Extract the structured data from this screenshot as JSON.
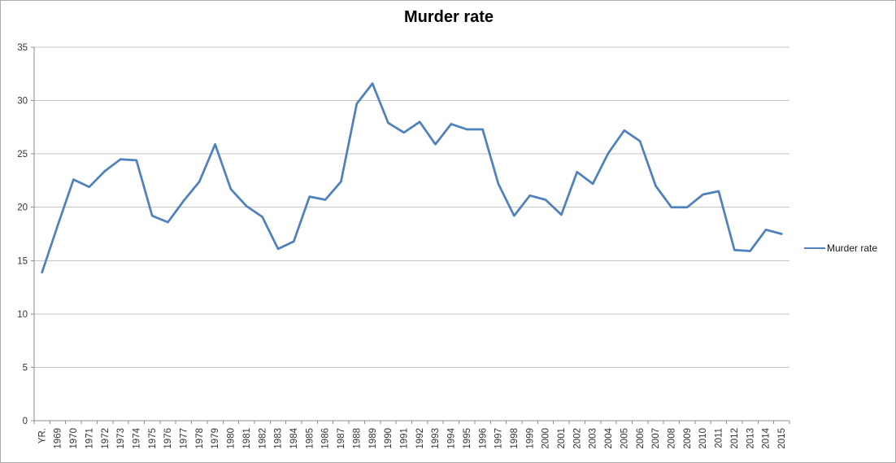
{
  "title": "Murder rate",
  "legend": {
    "label": "Murder rate",
    "position": "right"
  },
  "colors": {
    "line": "#4f81bd",
    "gridline": "#c6c6c6",
    "axis": "#8c8c8c",
    "tick_text": "#343434",
    "title_text": "#000000",
    "background": "#ffffff",
    "frame_border": "#ababab"
  },
  "chart_data": {
    "type": "line",
    "title": "Murder rate",
    "xlabel": "",
    "ylabel": "",
    "ylim": [
      0,
      35
    ],
    "ytick_interval": 5,
    "yticks": [
      0,
      5,
      10,
      15,
      20,
      25,
      30,
      35
    ],
    "grid": "horizontal",
    "legend_position": "right",
    "categories": [
      "YR.",
      "1969",
      "1970",
      "1971",
      "1972",
      "1973",
      "1974",
      "1975",
      "1976",
      "1977",
      "1978",
      "1979",
      "1980",
      "1981",
      "1982",
      "1983",
      "1984",
      "1985",
      "1986",
      "1987",
      "1988",
      "1989",
      "1990",
      "1991",
      "1992",
      "1993",
      "1994",
      "1995",
      "1996",
      "1997",
      "1998",
      "1999",
      "2000",
      "2001",
      "2002",
      "2003",
      "2004",
      "2005",
      "2006",
      "2007",
      "2008",
      "2009",
      "2010",
      "2011",
      "2012",
      "2013",
      "2014",
      "2015"
    ],
    "series": [
      {
        "name": "Murder rate",
        "values": [
          13.9,
          18.3,
          22.6,
          21.9,
          23.4,
          24.5,
          24.4,
          19.2,
          18.6,
          20.6,
          22.4,
          25.9,
          21.7,
          20.1,
          19.1,
          16.1,
          16.8,
          21.0,
          20.7,
          22.4,
          29.7,
          31.6,
          27.9,
          27.0,
          28.0,
          25.9,
          27.8,
          27.3,
          27.3,
          22.2,
          19.2,
          21.1,
          20.7,
          19.3,
          23.3,
          22.2,
          25.1,
          27.2,
          26.2,
          22.0,
          20.0,
          20.0,
          21.2,
          21.5,
          16.0,
          15.9,
          17.9,
          17.5
        ]
      }
    ]
  }
}
